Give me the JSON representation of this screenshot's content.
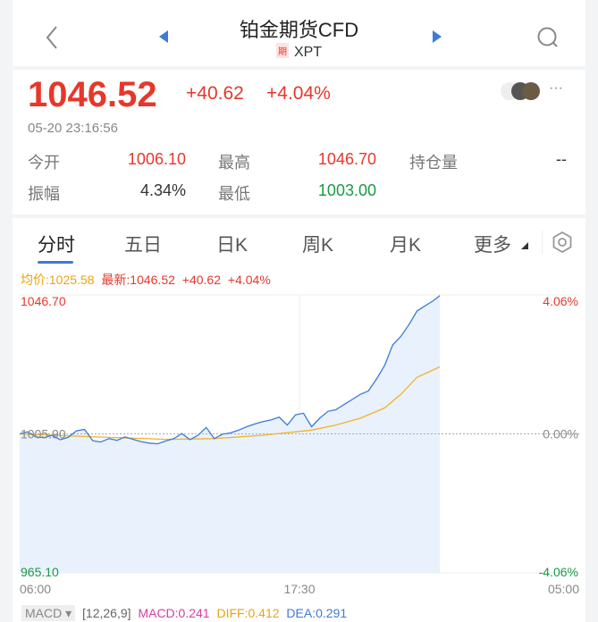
{
  "header": {
    "title": "铂金期货CFD",
    "badge": "期",
    "symbol": "XPT",
    "icons": [
      "back-chevron-icon",
      "prev-triangle-icon",
      "next-triangle-icon",
      "search-icon"
    ]
  },
  "quote": {
    "price": "1046.52",
    "change": "+40.62",
    "change_pct": "+4.04%",
    "timestamp": "05-20 23:16:56",
    "more": "···"
  },
  "stats": [
    {
      "label": "今开",
      "value": "1006.10",
      "color": "#e5382b"
    },
    {
      "label": "最高",
      "value": "1046.70",
      "color": "#e5382b"
    },
    {
      "label": "持仓量",
      "value": "--",
      "color": "#333333"
    },
    {
      "label": "振幅",
      "value": "4.34%",
      "color": "#333333"
    },
    {
      "label": "最低",
      "value": "1003.00",
      "color": "#1a9a43"
    }
  ],
  "tabs": [
    {
      "label": "分时",
      "active": true
    },
    {
      "label": "五日"
    },
    {
      "label": "日K"
    },
    {
      "label": "周K"
    },
    {
      "label": "月K"
    },
    {
      "label": "更多"
    }
  ],
  "legend": {
    "avg": "均价:1025.58",
    "latest": "最新:1046.52",
    "change": "+40.62",
    "pct": "+4.04%"
  },
  "chart_data": {
    "type": "line",
    "ylim": [
      965.1,
      1046.7
    ],
    "baseline": 1005.9,
    "y_labels_left": [
      "1046.70",
      "1005.90",
      "965.10"
    ],
    "y_labels_right": [
      "4.06%",
      "0.00%",
      "-4.06%"
    ],
    "x_ticks": [
      "06:00",
      "17:30",
      "05:00"
    ],
    "x_range": [
      "06:00",
      "05:00"
    ],
    "colors": {
      "price": "#3d7bd6",
      "avg": "#f0b429",
      "fill": "#e8f1fc"
    },
    "series": [
      {
        "key": "price",
        "times": [
          "06:00",
          "06:20",
          "06:40",
          "07:00",
          "07:20",
          "07:40",
          "08:00",
          "08:20",
          "08:40",
          "09:00",
          "09:20",
          "09:40",
          "10:00",
          "10:20",
          "10:40",
          "11:00",
          "11:20",
          "11:40",
          "12:00",
          "12:20",
          "12:40",
          "13:00",
          "13:20",
          "13:40",
          "14:00",
          "14:20",
          "14:40",
          "15:00",
          "15:20",
          "15:40",
          "16:00",
          "16:20",
          "16:40",
          "17:00",
          "17:20",
          "17:40",
          "18:00",
          "18:20",
          "18:40",
          "19:00",
          "19:20",
          "19:40",
          "20:00",
          "20:20",
          "20:40",
          "21:00",
          "21:20",
          "21:40",
          "22:00",
          "22:20",
          "22:40",
          "23:00",
          "23:16"
        ],
        "values": [
          1005.9,
          1006.5,
          1005.0,
          1004.8,
          1005.5,
          1004.2,
          1004.9,
          1006.8,
          1007.2,
          1003.9,
          1003.5,
          1004.5,
          1004.0,
          1005.0,
          1004.3,
          1003.6,
          1003.2,
          1003.0,
          1003.8,
          1004.5,
          1006.0,
          1004.2,
          1005.5,
          1007.8,
          1004.5,
          1005.8,
          1006.2,
          1007.0,
          1008.0,
          1008.8,
          1009.5,
          1010.0,
          1010.8,
          1008.5,
          1011.5,
          1012.0,
          1008.0,
          1010.5,
          1012.5,
          1013.0,
          1014.5,
          1016.0,
          1017.5,
          1018.5,
          1022.0,
          1026.0,
          1032.0,
          1034.5,
          1038.0,
          1042.0,
          1043.5,
          1045.0,
          1046.5
        ]
      },
      {
        "key": "avg",
        "times": [
          "06:00",
          "08:00",
          "10:00",
          "12:00",
          "14:00",
          "16:00",
          "18:00",
          "19:00",
          "20:00",
          "21:00",
          "21:40",
          "22:20",
          "23:16"
        ],
        "values": [
          1005.9,
          1005.3,
          1004.8,
          1004.3,
          1004.5,
          1005.5,
          1007.0,
          1008.5,
          1010.5,
          1013.5,
          1017.5,
          1022.5,
          1025.58
        ]
      }
    ]
  },
  "indicator": {
    "name": "MACD",
    "params": "[12,26,9]",
    "macd": "MACD:0.241",
    "diff": "DIFF:0.412",
    "dea": "DEA:0.291"
  }
}
